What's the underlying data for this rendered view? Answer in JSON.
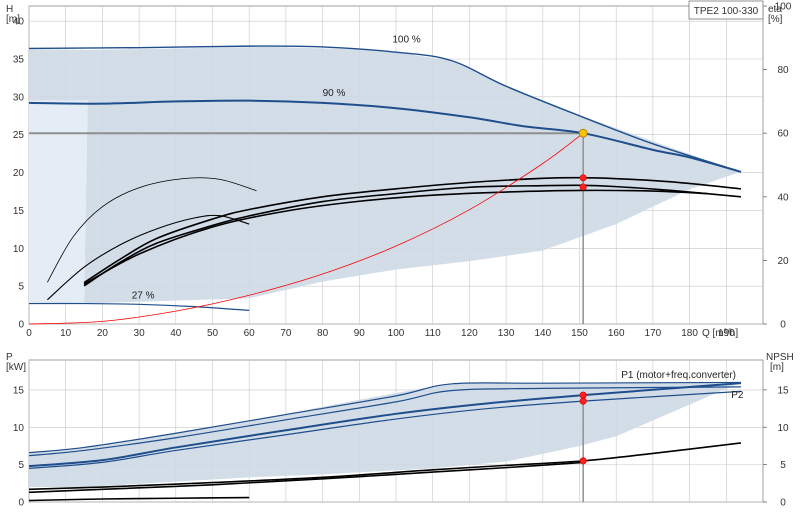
{
  "chart_data": [
    {
      "type": "line",
      "title": "TPE2 100-330",
      "x_axis": {
        "label": "Q [m³/h]",
        "range": [
          0,
          200
        ],
        "ticks": [
          0,
          10,
          20,
          30,
          40,
          50,
          60,
          70,
          80,
          90,
          100,
          110,
          120,
          130,
          140,
          150,
          160,
          170,
          180,
          190
        ]
      },
      "y_left": {
        "label_top": "H",
        "label_unit": "[m]",
        "range": [
          0,
          42
        ],
        "ticks": [
          0,
          5,
          10,
          15,
          20,
          25,
          30,
          35,
          40
        ]
      },
      "y_right": {
        "label_top": "eta",
        "label_unit": "[%]",
        "range": [
          0,
          100
        ],
        "ticks": [
          0,
          20,
          40,
          60,
          80,
          100
        ]
      },
      "operating_area": [
        [
          0,
          36.3
        ],
        [
          16,
          36.2
        ],
        [
          65,
          36.6
        ],
        [
          95,
          36.2
        ],
        [
          115,
          34.8
        ],
        [
          137,
          30
        ],
        [
          151,
          27.4
        ],
        [
          190,
          20.7
        ],
        [
          194,
          20.1
        ],
        [
          180,
          17.8
        ],
        [
          160,
          13.2
        ],
        [
          140,
          9.7
        ],
        [
          120,
          8.3
        ],
        [
          100,
          7.2
        ],
        [
          80,
          5.6
        ],
        [
          60,
          3.4
        ],
        [
          15,
          2.7
        ],
        [
          16,
          29.5
        ],
        [
          0,
          29.5
        ]
      ],
      "series": [
        {
          "name": "100 %",
          "axis": "left",
          "points": [
            [
              0,
              36.4
            ],
            [
              30,
              36.5
            ],
            [
              60,
              36.7
            ],
            [
              80,
              36.6
            ],
            [
              100,
              35.9
            ],
            [
              115,
              34.8
            ],
            [
              130,
              31.4
            ],
            [
              150,
              27.5
            ],
            [
              170,
              23.8
            ],
            [
              194,
              20.1
            ]
          ]
        },
        {
          "name": "90 %",
          "axis": "left",
          "points": [
            [
              0,
              29.2
            ],
            [
              20,
              29.1
            ],
            [
              40,
              29.4
            ],
            [
              60,
              29.5
            ],
            [
              80,
              29.2
            ],
            [
              100,
              28.5
            ],
            [
              120,
              27.3
            ],
            [
              135,
              26.1
            ],
            [
              151,
              25.2
            ],
            [
              170,
              23
            ],
            [
              180,
              22
            ],
            [
              194,
              20.1
            ]
          ]
        },
        {
          "name": "27 %",
          "axis": "left",
          "points": [
            [
              0,
              2.7
            ],
            [
              15,
              2.7
            ],
            [
              30,
              2.6
            ],
            [
              45,
              2.3
            ],
            [
              60,
              1.8
            ]
          ]
        },
        {
          "name": "",
          "axis": "left",
          "points": [
            [
              5,
              5.5
            ],
            [
              12,
              11.5
            ],
            [
              20,
              15.5
            ],
            [
              30,
              18
            ],
            [
              42,
              19.2
            ],
            [
              52,
              19.1
            ],
            [
              62,
              17.6
            ]
          ]
        },
        {
          "name": "",
          "axis": "left",
          "points": [
            [
              5,
              3.2
            ],
            [
              15,
              7.5
            ],
            [
              25,
              10.5
            ],
            [
              35,
              12.6
            ],
            [
              45,
              14
            ],
            [
              52,
              14.3
            ],
            [
              60,
              13.2
            ]
          ]
        },
        {
          "name": "",
          "axis": "right",
          "points": [
            [
              15,
              13
            ],
            [
              25,
              20.5
            ],
            [
              35,
              27
            ],
            [
              50,
              33
            ],
            [
              60,
              36
            ],
            [
              80,
              40
            ],
            [
              100,
              42.5
            ],
            [
              120,
              44.5
            ],
            [
              140,
              45.8
            ],
            [
              150,
              46
            ],
            [
              160,
              45.7
            ],
            [
              175,
              44.7
            ],
            [
              194,
              42.5
            ]
          ]
        },
        {
          "name": "",
          "axis": "right",
          "points": [
            [
              15,
              12
            ],
            [
              25,
              19.5
            ],
            [
              35,
              25.5
            ],
            [
              50,
              31
            ],
            [
              60,
              34
            ],
            [
              80,
              38.5
            ],
            [
              100,
              41
            ],
            [
              120,
              43
            ],
            [
              140,
              43.5
            ],
            [
              150,
              43.6
            ],
            [
              160,
              43.2
            ],
            [
              175,
              42
            ],
            [
              194,
              40
            ]
          ]
        },
        {
          "name": "",
          "axis": "right",
          "points": [
            [
              15,
              12.5
            ],
            [
              30,
              22
            ],
            [
              50,
              30.5
            ],
            [
              70,
              35.5
            ],
            [
              90,
              38.6
            ],
            [
              110,
              40.5
            ],
            [
              130,
              41.5
            ],
            [
              150,
              42
            ],
            [
              170,
              41.8
            ],
            [
              185,
              41
            ]
          ]
        },
        {
          "name": "",
          "axis": "left",
          "color": "#ff0000",
          "points": [
            [
              0,
              0
            ],
            [
              20,
              0.35
            ],
            [
              40,
              1.7
            ],
            [
              60,
              3.8
            ],
            [
              80,
              6.6
            ],
            [
              100,
              10.3
            ],
            [
              120,
              15.1
            ],
            [
              140,
              21.2
            ],
            [
              151,
              25.2
            ]
          ]
        }
      ],
      "reference_lines": [
        {
          "orientation": "horizontal",
          "axis": "left",
          "value": 25.2,
          "from": 0,
          "to": 151
        },
        {
          "orientation": "vertical",
          "value": 151,
          "from": 0,
          "to": 25.2
        }
      ],
      "duty_point": {
        "x": 151,
        "y": 25.2,
        "color": "#f5c400"
      },
      "markers": [
        {
          "x": 151,
          "y": 19.3
        },
        {
          "x": 151,
          "y": 18.1
        }
      ],
      "curve_labels": [
        {
          "text": "100 %",
          "x": 99,
          "y": 37.2
        },
        {
          "text": "90 %",
          "x": 80,
          "y": 30.1
        },
        {
          "text": "27 %",
          "x": 28,
          "y": 3.4
        }
      ]
    },
    {
      "type": "line",
      "x_axis": {
        "range": [
          0,
          200
        ],
        "ticks": [
          0,
          10,
          20,
          30,
          40,
          50,
          60,
          70,
          80,
          90,
          100,
          110,
          120,
          130,
          140,
          150,
          160,
          170,
          180,
          190
        ]
      },
      "y_left": {
        "label_top": "P",
        "label_unit": "[kW]",
        "range": [
          0,
          19
        ],
        "ticks": [
          0,
          5,
          10,
          15
        ]
      },
      "y_right": {
        "label_top": "NPSH",
        "label_unit": "[m]",
        "range": [
          0,
          19
        ],
        "ticks": [
          0,
          5,
          10,
          15
        ]
      },
      "operating_area": [
        [
          0,
          6.6
        ],
        [
          15,
          7.3
        ],
        [
          40,
          9.2
        ],
        [
          70,
          11.8
        ],
        [
          100,
          14.6
        ],
        [
          115,
          15.8
        ],
        [
          160,
          16.0
        ],
        [
          194,
          16.0
        ],
        [
          160,
          8.8
        ],
        [
          150,
          7.5
        ],
        [
          130,
          5.4
        ],
        [
          110,
          4.5
        ],
        [
          80,
          3.7
        ],
        [
          60,
          3.3
        ],
        [
          15,
          2.0
        ],
        [
          0,
          2.0
        ]
      ],
      "series": [
        {
          "name": "P1 (motor+freq.converter)",
          "axis": "left",
          "points": [
            [
              0,
              6.6
            ],
            [
              15,
              7.3
            ],
            [
              40,
              9.2
            ],
            [
              70,
              11.7
            ],
            [
              100,
              14.2
            ],
            [
              115,
              15.8
            ],
            [
              140,
              15.9
            ],
            [
              194,
              16.0
            ]
          ]
        },
        {
          "name": "",
          "axis": "left",
          "points": [
            [
              0,
              6.2
            ],
            [
              15,
              6.9
            ],
            [
              40,
              8.6
            ],
            [
              70,
              11.0
            ],
            [
              100,
              13.4
            ],
            [
              115,
              14.9
            ],
            [
              140,
              15.2
            ],
            [
              194,
              15.4
            ]
          ]
        },
        {
          "name": "",
          "axis": "left",
          "points": [
            [
              0,
              4.8
            ],
            [
              20,
              5.6
            ],
            [
              40,
              7.3
            ],
            [
              70,
              9.6
            ],
            [
              100,
              11.8
            ],
            [
              125,
              13.2
            ],
            [
              151,
              14.3
            ],
            [
              194,
              15.9
            ]
          ]
        },
        {
          "name": "P2",
          "axis": "left",
          "points": [
            [
              0,
              4.5
            ],
            [
              20,
              5.3
            ],
            [
              40,
              6.9
            ],
            [
              70,
              9.0
            ],
            [
              100,
              11.1
            ],
            [
              125,
              12.5
            ],
            [
              151,
              13.5
            ],
            [
              194,
              14.8
            ]
          ]
        },
        {
          "name": "",
          "axis": "right",
          "points": [
            [
              0,
              1.7
            ],
            [
              20,
              2.0
            ],
            [
              50,
              2.6
            ],
            [
              80,
              3.3
            ],
            [
              110,
              4.3
            ],
            [
              130,
              4.9
            ],
            [
              151,
              5.5
            ],
            [
              170,
              6.5
            ],
            [
              194,
              7.9
            ]
          ]
        },
        {
          "name": "",
          "axis": "right",
          "points": [
            [
              0,
              1.3
            ],
            [
              20,
              1.7
            ],
            [
              50,
              2.3
            ],
            [
              80,
              3.1
            ],
            [
              110,
              4.0
            ],
            [
              130,
              4.6
            ],
            [
              151,
              5.3
            ]
          ]
        },
        {
          "name": "",
          "axis": "right",
          "points": [
            [
              0,
              0.2
            ],
            [
              20,
              0.4
            ],
            [
              40,
              0.5
            ],
            [
              60,
              0.6
            ]
          ]
        }
      ],
      "reference_lines": [
        {
          "orientation": "vertical",
          "value": 151,
          "from": 0,
          "to": 14.3
        }
      ],
      "markers": [
        {
          "x": 151,
          "y": 14.3
        },
        {
          "x": 151,
          "y": 13.5
        },
        {
          "x": 151,
          "y": 5.5
        }
      ],
      "curve_labels": [
        {
          "text": "P1 (motor+freq.converter)",
          "x": 177,
          "y": 16.6,
          "anchor": "middle"
        },
        {
          "text": "P2",
          "x": 193,
          "y": 13.9,
          "anchor": "middle"
        }
      ]
    }
  ]
}
